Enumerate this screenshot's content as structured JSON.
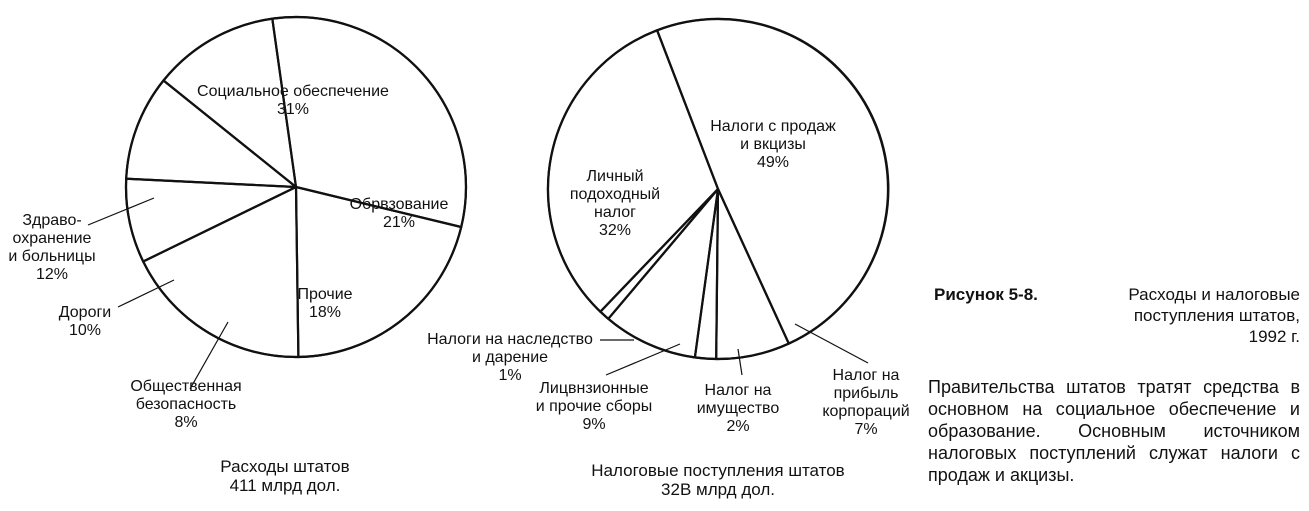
{
  "figure": {
    "label": "Рисунок 5-8.",
    "caption_lines": [
      "Расходы и налоговые",
      "поступления штатов,",
      "1992 г."
    ],
    "description": "Правительства штатов тратят средства в основном на социальное обеспечение и образование. Основным источником налоговых поступлений служат налоги с продаж и акцизы."
  },
  "chart_data": [
    {
      "type": "pie",
      "title_lines": [
        "Расходы штатов",
        "411 млрд дол."
      ],
      "slices": [
        {
          "label_lines": [
            "Социальное обеспечение",
            "31%"
          ],
          "value": 31
        },
        {
          "label_lines": [
            "Обрвзование",
            "21%"
          ],
          "value": 21
        },
        {
          "label_lines": [
            "Прочие",
            "18%"
          ],
          "value": 18
        },
        {
          "label_lines": [
            "Общественная",
            "безопасность",
            "8%"
          ],
          "value": 8
        },
        {
          "label_lines": [
            "Дороги",
            "10%"
          ],
          "value": 10
        },
        {
          "label_lines": [
            "Здраво-",
            "охранение",
            "и больницы",
            "12%"
          ],
          "value": 12
        }
      ]
    },
    {
      "type": "pie",
      "title_lines": [
        "Налоговые поступления штатов",
        "32В млрд дол."
      ],
      "slices": [
        {
          "label_lines": [
            "Налоги с продаж",
            "и вкцизы",
            "49%"
          ],
          "value": 49
        },
        {
          "label_lines": [
            "Налог на",
            "прибыль",
            "корпораций",
            "7%"
          ],
          "value": 7
        },
        {
          "label_lines": [
            "Налог на",
            "имущество",
            "2%"
          ],
          "value": 2
        },
        {
          "label_lines": [
            "Лицвнзионные",
            "и прочие сборы",
            "9%"
          ],
          "value": 9
        },
        {
          "label_lines": [
            "Налоги на наследство",
            "и дарение",
            "1%"
          ],
          "value": 1
        },
        {
          "label_lines": [
            "Личный",
            "подоходный",
            "налог",
            "32%"
          ],
          "value": 32
        }
      ]
    }
  ]
}
